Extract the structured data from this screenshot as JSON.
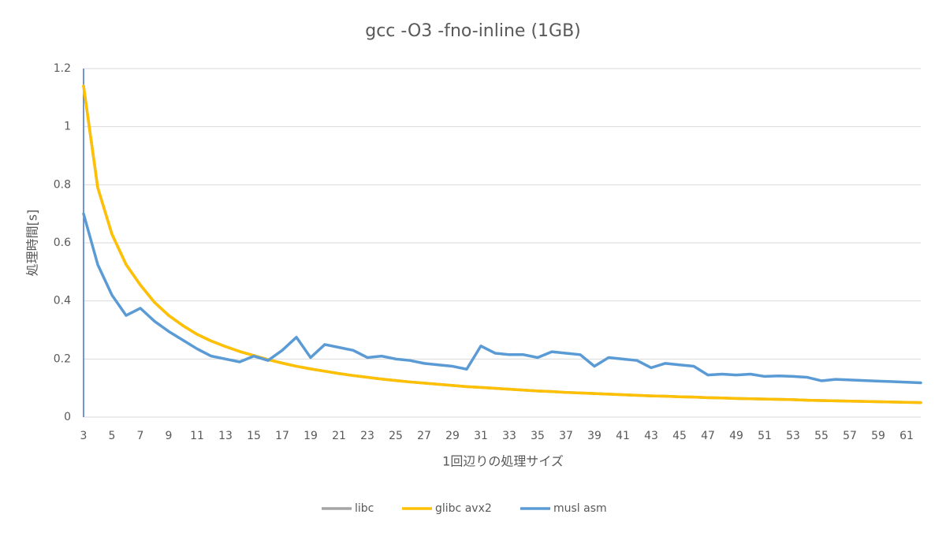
{
  "chart_data": {
    "type": "line",
    "title": "gcc -O3 -fno-inline (1GB)",
    "x_label": "1回辺りの処理サイズ",
    "y_label": "処理時間[s]",
    "categories": [
      3,
      null,
      5,
      null,
      7,
      null,
      9,
      null,
      11,
      null,
      13,
      null,
      15,
      null,
      17,
      null,
      19,
      null,
      21,
      null,
      23,
      null,
      25,
      null,
      27,
      null,
      29,
      null,
      31,
      null,
      33,
      null,
      35,
      null,
      37,
      null,
      39,
      null,
      41,
      null,
      43,
      null,
      45,
      null,
      47,
      null,
      49,
      null,
      51,
      null,
      53,
      null,
      55,
      null,
      57,
      null,
      59,
      null,
      61,
      null
    ],
    "ylim": [
      0,
      1.2
    ],
    "yticks": [
      0,
      0.2,
      0.4,
      0.6,
      0.8,
      1,
      1.2
    ],
    "grid": true,
    "legend": "bottom",
    "series": [
      {
        "name": "libc",
        "color": "#a5a5a5",
        "values": [
          1.14,
          0.79,
          0.63,
          0.525,
          0.455,
          0.395,
          0.35,
          0.315,
          0.285,
          0.262,
          0.243,
          0.226,
          0.212,
          0.198,
          0.186,
          0.175,
          0.166,
          0.158,
          0.15,
          0.143,
          0.137,
          0.131,
          0.126,
          0.121,
          0.117,
          0.113,
          0.109,
          0.105,
          0.102,
          0.099,
          0.096,
          0.093,
          0.09,
          0.088,
          0.085,
          0.083,
          0.081,
          0.079,
          0.077,
          0.075,
          0.073,
          0.072,
          0.07,
          0.069,
          0.067,
          0.066,
          0.064,
          0.063,
          0.062,
          0.061,
          0.06,
          0.058,
          0.057,
          0.056,
          0.055,
          0.054,
          0.053,
          0.052,
          0.051,
          0.05
        ]
      },
      {
        "name": "glibc avx2",
        "color": "#ffc000",
        "values": [
          1.14,
          0.79,
          0.63,
          0.525,
          0.455,
          0.395,
          0.35,
          0.315,
          0.285,
          0.262,
          0.243,
          0.226,
          0.212,
          0.198,
          0.186,
          0.175,
          0.166,
          0.158,
          0.15,
          0.143,
          0.137,
          0.131,
          0.126,
          0.121,
          0.117,
          0.113,
          0.109,
          0.105,
          0.102,
          0.099,
          0.096,
          0.093,
          0.09,
          0.088,
          0.085,
          0.083,
          0.081,
          0.079,
          0.077,
          0.075,
          0.073,
          0.072,
          0.07,
          0.069,
          0.067,
          0.066,
          0.064,
          0.063,
          0.062,
          0.061,
          0.06,
          0.058,
          0.057,
          0.056,
          0.055,
          0.054,
          0.053,
          0.052,
          0.051,
          0.05
        ]
      },
      {
        "name": "musl asm",
        "color": "#5b9bd5",
        "values": [
          0.7,
          0.525,
          0.42,
          0.35,
          0.375,
          0.33,
          0.295,
          0.265,
          0.235,
          0.21,
          0.2,
          0.19,
          0.21,
          0.195,
          0.23,
          0.275,
          0.205,
          0.25,
          0.24,
          0.23,
          0.205,
          0.21,
          0.2,
          0.195,
          0.185,
          0.18,
          0.175,
          0.165,
          0.245,
          0.22,
          0.215,
          0.215,
          0.205,
          0.225,
          0.22,
          0.215,
          0.175,
          0.205,
          0.2,
          0.195,
          0.17,
          0.185,
          0.18,
          0.175,
          0.145,
          0.148,
          0.145,
          0.148,
          0.14,
          0.142,
          0.14,
          0.137,
          0.125,
          0.13,
          0.128,
          0.126,
          0.124,
          0.122,
          0.12,
          0.118
        ]
      }
    ]
  }
}
